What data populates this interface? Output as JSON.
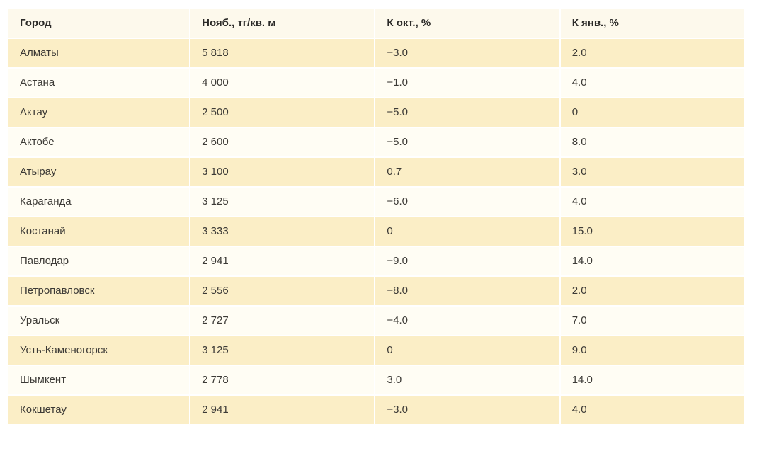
{
  "colors": {
    "header_bg": "#fdf9ec",
    "row_stripe_bg": "#fbeec6",
    "row_plain_bg": "#fffdf4",
    "grid_line": "#ffffff",
    "text": "#3c3a36",
    "header_text": "#2b2a28"
  },
  "chart_data": {
    "type": "table",
    "title": "",
    "columns": [
      "Город",
      "Нояб., тг/кв. м",
      "К окт., %",
      "К янв., %"
    ],
    "rows": [
      [
        "Алматы",
        "5 818",
        "−3.0",
        "2.0"
      ],
      [
        "Астана",
        "4 000",
        "−1.0",
        "4.0"
      ],
      [
        "Актау",
        "2 500",
        "−5.0",
        "0"
      ],
      [
        "Актобе",
        "2 600",
        "−5.0",
        "8.0"
      ],
      [
        "Атырау",
        "3 100",
        "0.7",
        "3.0"
      ],
      [
        "Караганда",
        "3 125",
        "−6.0",
        "4.0"
      ],
      [
        "Костанай",
        "3 333",
        "0",
        "15.0"
      ],
      [
        "Павлодар",
        "2 941",
        "−9.0",
        "14.0"
      ],
      [
        "Петропавловск",
        "2 556",
        "−8.0",
        "2.0"
      ],
      [
        "Уральск",
        "2 727",
        "−4.0",
        "7.0"
      ],
      [
        "Усть-Каменогорск",
        "3 125",
        "0",
        "9.0"
      ],
      [
        "Шымкент",
        "2 778",
        "3.0",
        "14.0"
      ],
      [
        "Кокшетау",
        "2 941",
        "−3.0",
        "4.0"
      ]
    ]
  }
}
